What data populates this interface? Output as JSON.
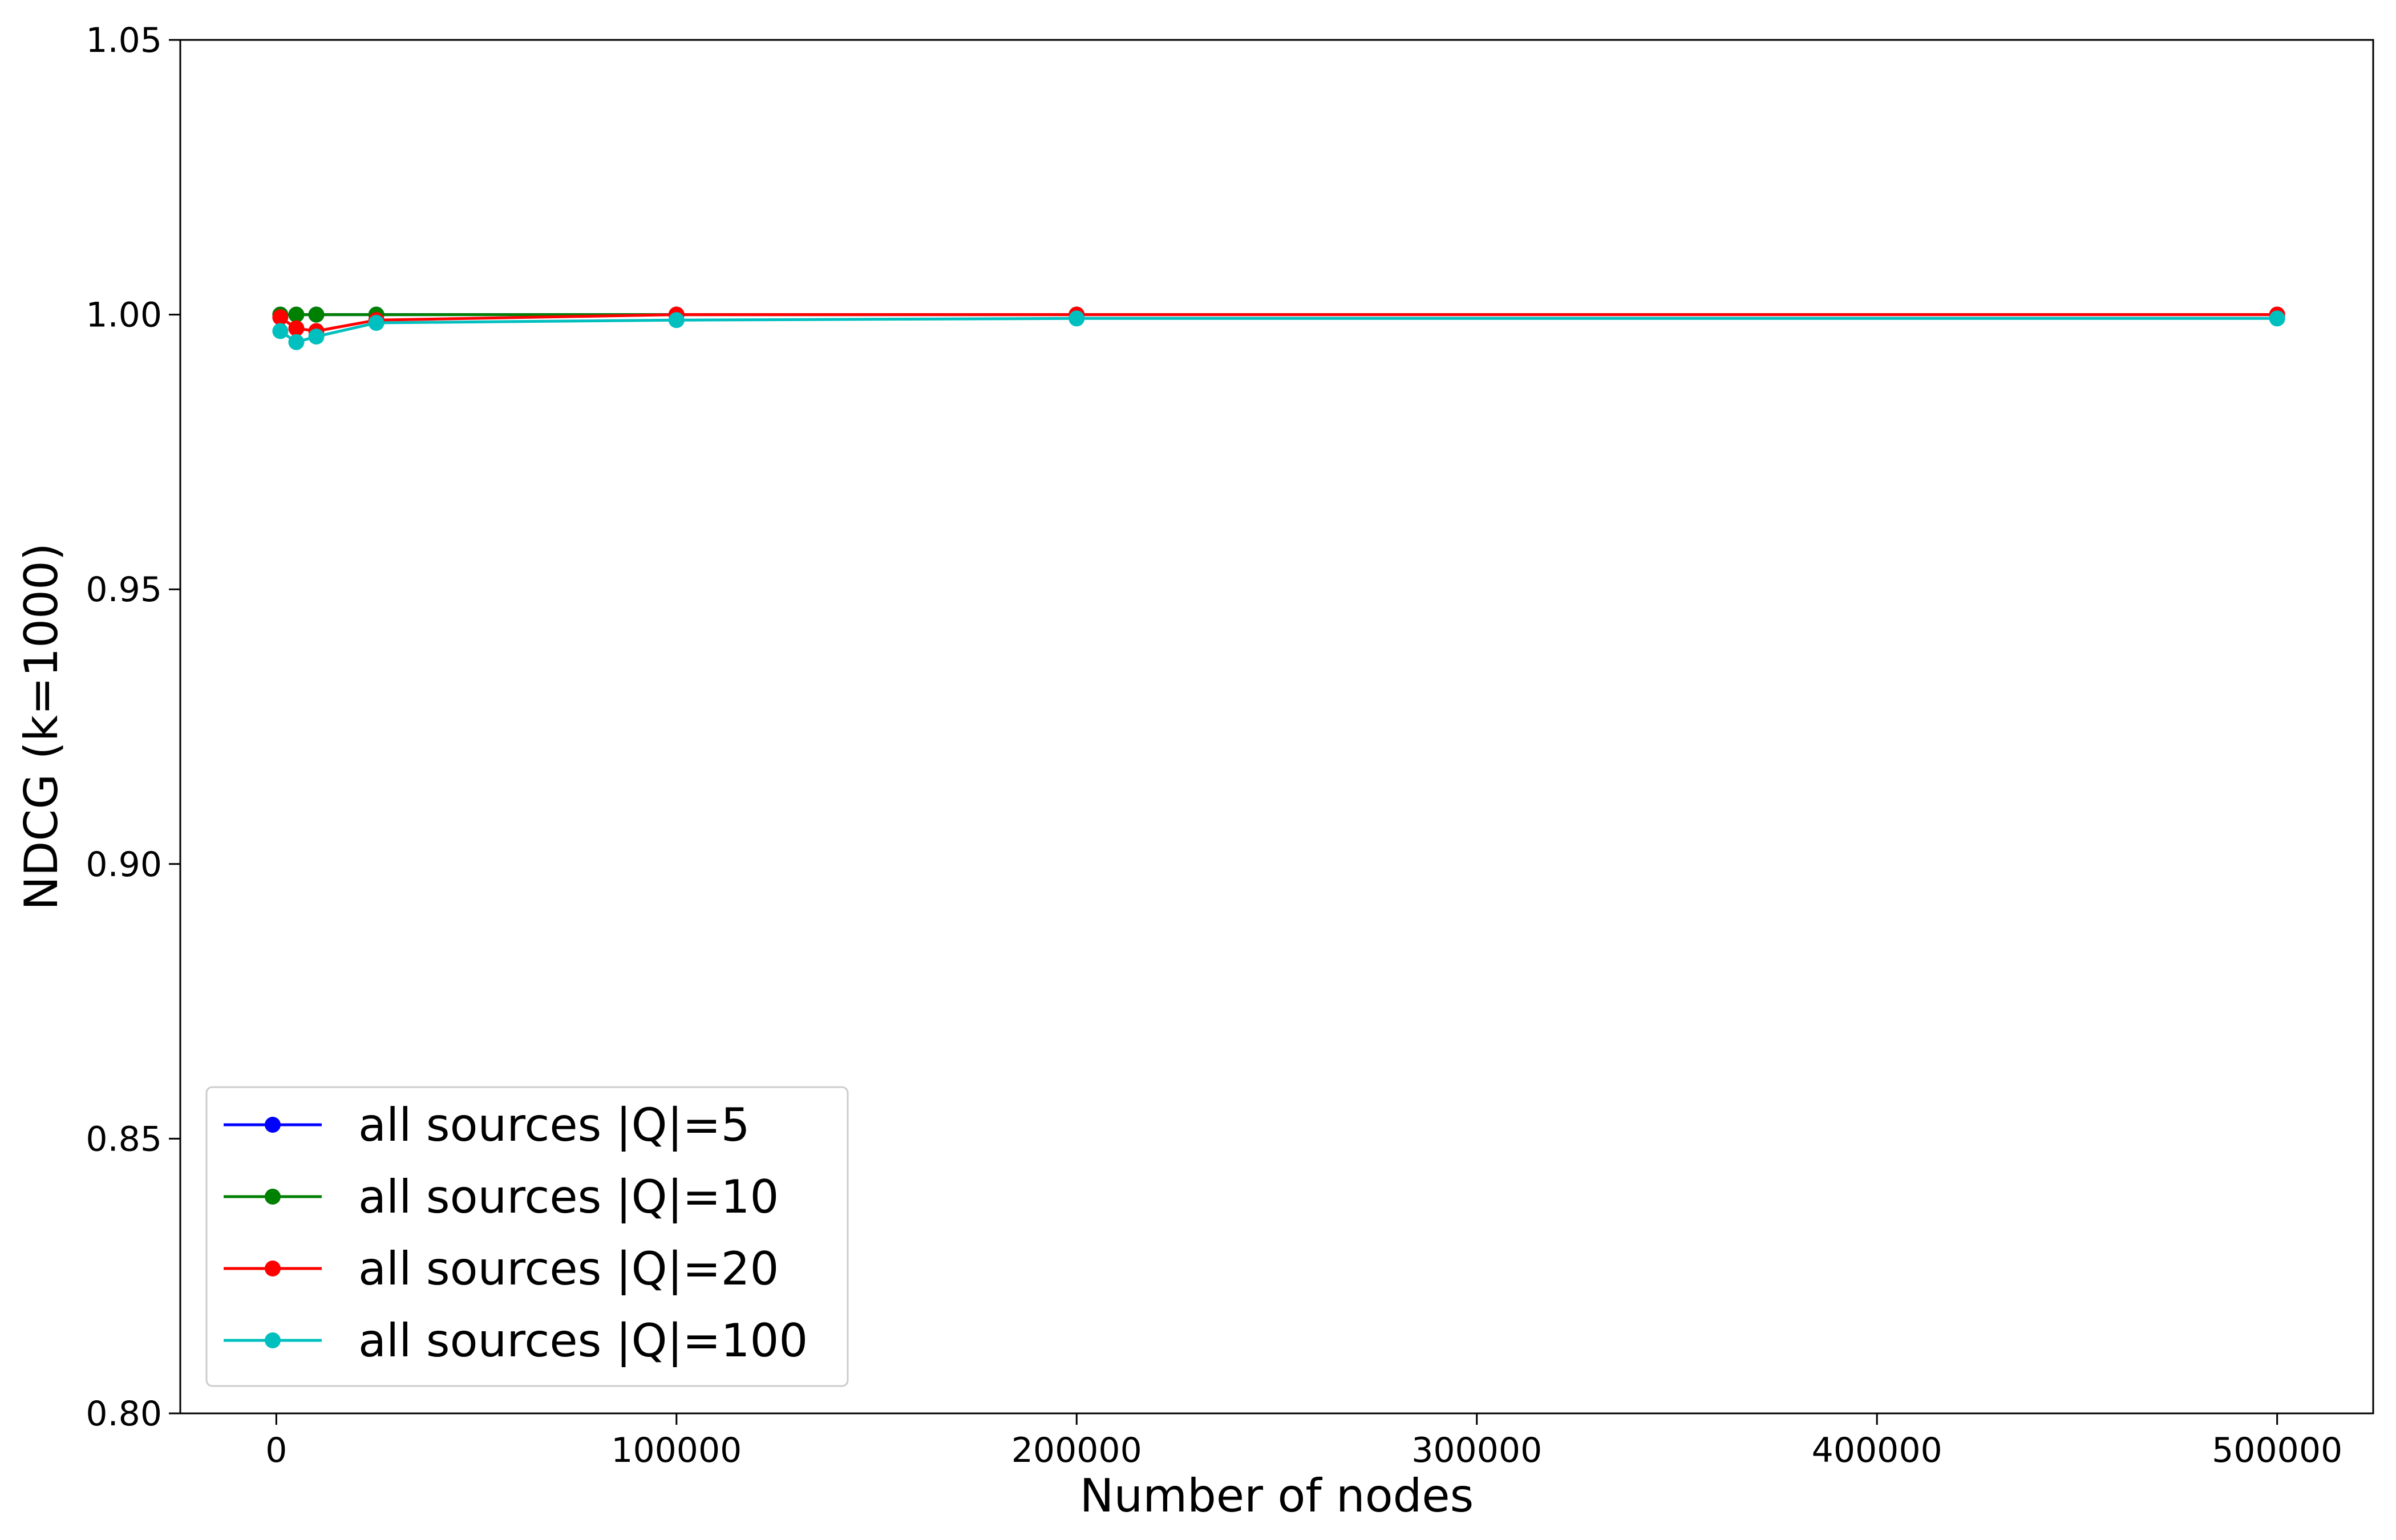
{
  "chart_data": {
    "type": "line",
    "xlabel": "Number of nodes",
    "ylabel": "NDCG (k=1000)",
    "xlim": [
      -24000,
      524000
    ],
    "ylim": [
      0.8,
      1.05
    ],
    "xticks": [
      0,
      100000,
      200000,
      300000,
      400000,
      500000
    ],
    "xtick_labels": [
      "0",
      "100000",
      "200000",
      "300000",
      "400000",
      "500000"
    ],
    "yticks": [
      0.8,
      0.85,
      0.9,
      0.95,
      1.0,
      1.05
    ],
    "ytick_labels": [
      "0.80",
      "0.85",
      "0.90",
      "0.95",
      "1.00",
      "1.05"
    ],
    "grid": false,
    "legend_position": "lower-left",
    "x": [
      1000,
      5000,
      10000,
      25000,
      100000,
      200000,
      500000
    ],
    "series": [
      {
        "name": "all sources |Q|=5",
        "color": "#0000ff",
        "values": [
          1.0,
          1.0,
          1.0,
          1.0,
          1.0,
          1.0,
          1.0
        ]
      },
      {
        "name": "all sources |Q|=10",
        "color": "#008000",
        "values": [
          1.0,
          1.0,
          1.0,
          1.0,
          1.0,
          1.0,
          1.0
        ]
      },
      {
        "name": "all sources |Q|=20",
        "color": "#ff0000",
        "values": [
          0.9995,
          0.9975,
          0.997,
          0.999,
          1.0,
          1.0,
          1.0
        ]
      },
      {
        "name": "all sources |Q|=100",
        "color": "#00bfbf",
        "values": [
          0.997,
          0.995,
          0.996,
          0.9985,
          0.999,
          0.9993,
          0.9993
        ]
      }
    ]
  }
}
